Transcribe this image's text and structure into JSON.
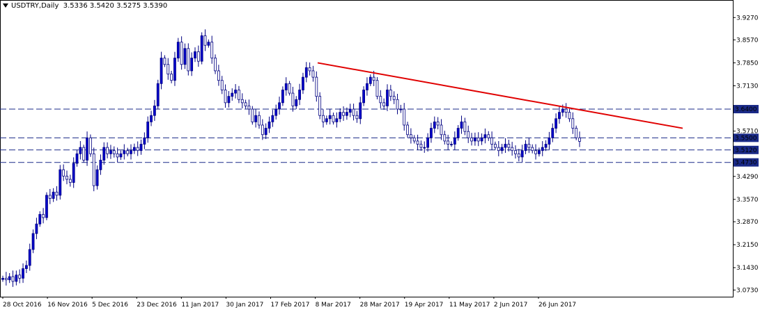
{
  "header": {
    "symbol": "USDTRY,Daily",
    "ohlc": "3.5336 3.5420 3.5275 3.5390"
  },
  "chart_data": {
    "type": "candlestick",
    "symbol": "USDTRY",
    "timeframe": "Daily",
    "ylim": [
      3.052,
      3.982
    ],
    "y_ticks": [
      "3.9270",
      "3.8570",
      "3.7850",
      "3.7130",
      "3.6400",
      "3.5710",
      "3.5500",
      "3.5120",
      "3.4730",
      "3.4290",
      "3.3570",
      "3.2870",
      "3.2150",
      "3.1430",
      "3.0730"
    ],
    "x_tick_labels": [
      "28 Oct 2016",
      "16 Nov 2016",
      "5 Dec 2016",
      "23 Dec 2016",
      "11 Jan 2017",
      "30 Jan 2017",
      "17 Feb 2017",
      "8 Mar 2017",
      "28 Mar 2017",
      "19 Apr 2017",
      "11 May 2017",
      "2 Jun 2017",
      "26 Jun 2017"
    ],
    "horizontal_levels": [
      {
        "label": "3.6400",
        "value": 3.64
      },
      {
        "label": "3.5500",
        "value": 3.55
      },
      {
        "label": "3.5120",
        "value": 3.512
      },
      {
        "label": "3.4730",
        "value": 3.473
      }
    ],
    "trendline": {
      "from": {
        "date": "6 Mar 2017",
        "price": 3.785
      },
      "to": {
        "date": "31 Jul 2017",
        "price": 3.58
      }
    },
    "bull_color": "#0000cc",
    "bear_color": "#ffffff",
    "line_color": "#000080",
    "trend_color": "#e00000",
    "levels_color": "#1a2a88",
    "close_path": [
      3.11,
      3.105,
      3.115,
      3.1,
      3.12,
      3.11,
      3.14,
      3.15,
      3.2,
      3.25,
      3.28,
      3.31,
      3.3,
      3.37,
      3.36,
      3.38,
      3.37,
      3.45,
      3.43,
      3.42,
      3.41,
      3.47,
      3.5,
      3.52,
      3.48,
      3.55,
      3.5,
      3.4,
      3.45,
      3.48,
      3.52,
      3.5,
      3.51,
      3.5,
      3.49,
      3.5,
      3.51,
      3.5,
      3.51,
      3.52,
      3.51,
      3.53,
      3.55,
      3.6,
      3.62,
      3.65,
      3.72,
      3.8,
      3.78,
      3.75,
      3.73,
      3.8,
      3.85,
      3.78,
      3.83,
      3.76,
      3.8,
      3.82,
      3.79,
      3.87,
      3.84,
      3.85,
      3.8,
      3.76,
      3.73,
      3.7,
      3.66,
      3.68,
      3.69,
      3.7,
      3.67,
      3.66,
      3.65,
      3.64,
      3.6,
      3.62,
      3.59,
      3.56,
      3.58,
      3.6,
      3.62,
      3.64,
      3.66,
      3.7,
      3.72,
      3.69,
      3.65,
      3.67,
      3.7,
      3.74,
      3.77,
      3.76,
      3.74,
      3.68,
      3.62,
      3.6,
      3.61,
      3.62,
      3.6,
      3.61,
      3.63,
      3.62,
      3.63,
      3.64,
      3.62,
      3.61,
      3.66,
      3.7,
      3.72,
      3.74,
      3.73,
      3.68,
      3.66,
      3.65,
      3.7,
      3.68,
      3.67,
      3.64,
      3.64,
      3.59,
      3.56,
      3.55,
      3.54,
      3.53,
      3.52,
      3.52,
      3.55,
      3.58,
      3.6,
      3.59,
      3.56,
      3.54,
      3.53,
      3.53,
      3.55,
      3.58,
      3.6,
      3.57,
      3.55,
      3.54,
      3.55,
      3.54,
      3.55,
      3.56,
      3.55,
      3.53,
      3.52,
      3.51,
      3.52,
      3.53,
      3.52,
      3.51,
      3.5,
      3.49,
      3.51,
      3.53,
      3.52,
      3.51,
      3.5,
      3.51,
      3.52,
      3.53,
      3.55,
      3.58,
      3.61,
      3.63,
      3.64,
      3.63,
      3.61,
      3.58,
      3.55,
      3.539
    ]
  }
}
